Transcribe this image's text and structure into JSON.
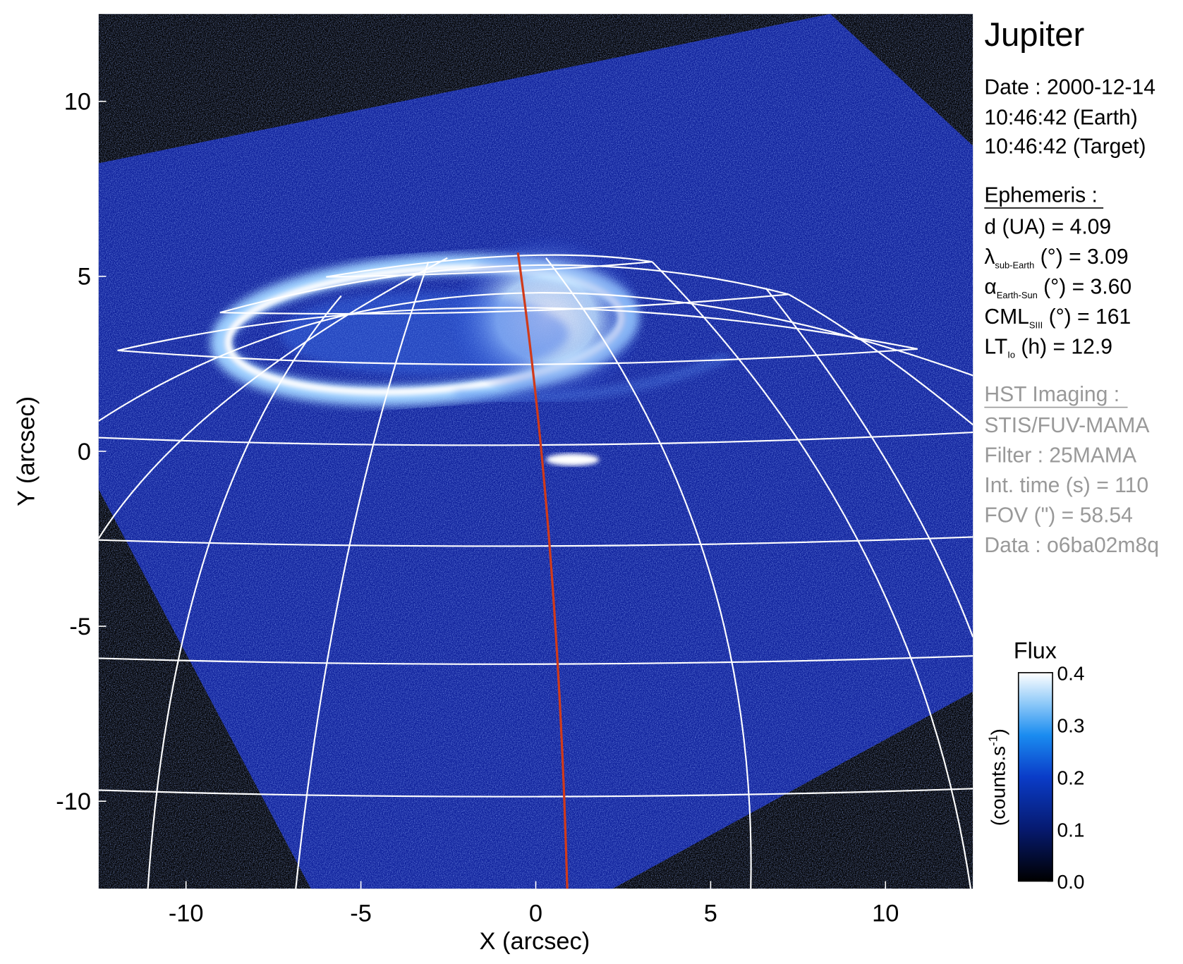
{
  "chart_data": {
    "type": "image",
    "title": "Jupiter",
    "x_label": "X (arcsec)",
    "y_label": "Y (arcsec)",
    "xlim": [
      -12.5,
      12.5
    ],
    "ylim": [
      -12.5,
      12.5
    ],
    "xticks": [
      -10,
      -5,
      0,
      5,
      10
    ],
    "yticks": [
      -10,
      -5,
      0,
      5,
      10
    ],
    "colorbar": {
      "title": "Flux",
      "unit": [
        "(counts.s",
        "-1",
        ")"
      ],
      "lim": [
        0,
        0.4
      ],
      "ticks": [
        {
          "value": 0,
          "label": "0.0"
        },
        0.1,
        0.2,
        0.3,
        0.4
      ]
    }
  },
  "info": {
    "date": [
      "Date : 2000-12-14",
      "10:46:42 (Earth)",
      "10:46:42 (Target)"
    ],
    "ephemeris": {
      "title": "Ephemeris :",
      "rows": [
        {
          "name": "d (UA)    = 4.09"
        },
        {
          "name": "λ",
          "sub": "sub-Earth",
          "rest": " (°) = 3.09"
        },
        {
          "name": "α",
          "sub": "Earth-Sun",
          "rest": " (°) = 3.60"
        },
        {
          "name": "CML",
          "sub": "SIII",
          "rest": " (°) = 161"
        },
        {
          "name": "LT",
          "sub": "Io",
          "rest": " (h) = 12.9"
        }
      ]
    },
    "hst": {
      "title": "HST Imaging :",
      "rows": [
        "STIS/FUV-MAMA",
        "Filter : 25MAMA",
        "Int. time (s) = 110",
        "FOV (\") = 58.54",
        "Data : o6ba02m8q"
      ]
    }
  }
}
